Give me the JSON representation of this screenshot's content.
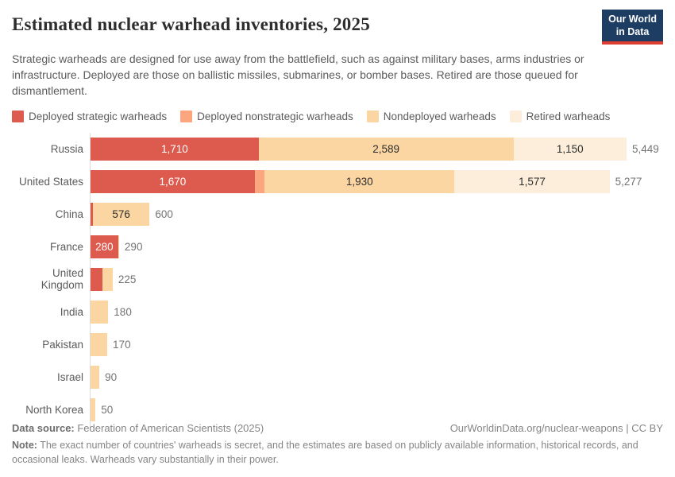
{
  "header": {
    "title": "Estimated nuclear warhead inventories, 2025",
    "logo": {
      "line1": "Our World",
      "line2": "in Data",
      "bg_color": "#1d3d63",
      "accent_color": "#dc3e32"
    }
  },
  "subtitle": "Strategic warheads are designed for use away from the battlefield, such as against military bases, arms industries or infrastructure. Deployed are those on ballistic missiles, submarines, or bomber bases. Retired are those queued for dismantlement.",
  "legend": [
    {
      "key": "strategic",
      "label": "Deployed strategic warheads",
      "color": "#dd5a4e"
    },
    {
      "key": "nonstrategic",
      "label": "Deployed nonstrategic warheads",
      "color": "#fca67f"
    },
    {
      "key": "nondeployed",
      "label": "Nondeployed warheads",
      "color": "#fcd6a2"
    },
    {
      "key": "retired",
      "label": "Retired warheads",
      "color": "#fdeedc"
    }
  ],
  "chart_data": {
    "type": "bar",
    "orientation": "horizontal",
    "stacked": true,
    "title": "Estimated nuclear warhead inventories, 2025",
    "xlabel": "",
    "ylabel": "",
    "xlim": [
      0,
      5449
    ],
    "grid": false,
    "legend_position": "top",
    "max_total": 5449,
    "series_names": [
      "Deployed strategic warheads",
      "Deployed nonstrategic warheads",
      "Nondeployed warheads",
      "Retired warheads"
    ],
    "colors": {
      "strategic": "#dd5a4e",
      "nonstrategic": "#fca67f",
      "nondeployed": "#fcd6a2",
      "retired": "#fdeedc"
    },
    "rows": [
      {
        "country": "Russia",
        "total": 5449,
        "total_label": "5,449",
        "segments": [
          {
            "series": "strategic",
            "value": 1710,
            "label": "1,710",
            "label_style": "light"
          },
          {
            "series": "nondeployed",
            "value": 2589,
            "label": "2,589",
            "label_style": "dark"
          },
          {
            "series": "retired",
            "value": 1150,
            "label": "1,150",
            "label_style": "dark"
          }
        ]
      },
      {
        "country": "United States",
        "total": 5277,
        "total_label": "5,277",
        "segments": [
          {
            "series": "strategic",
            "value": 1670,
            "label": "1,670",
            "label_style": "light"
          },
          {
            "series": "nonstrategic",
            "value": 100,
            "label": "",
            "label_style": "dark"
          },
          {
            "series": "nondeployed",
            "value": 1930,
            "label": "1,930",
            "label_style": "dark"
          },
          {
            "series": "retired",
            "value": 1577,
            "label": "1,577",
            "label_style": "dark"
          }
        ]
      },
      {
        "country": "China",
        "total": 600,
        "total_label": "600",
        "segments": [
          {
            "series": "strategic",
            "value": 24,
            "label": "",
            "label_style": "light"
          },
          {
            "series": "nondeployed",
            "value": 576,
            "label": "576",
            "label_style": "dark"
          }
        ]
      },
      {
        "country": "France",
        "total": 290,
        "total_label": "290",
        "segments": [
          {
            "series": "strategic",
            "value": 280,
            "label": "280",
            "label_style": "light"
          },
          {
            "series": "nondeployed",
            "value": 10,
            "label": "",
            "label_style": "dark"
          }
        ]
      },
      {
        "country": "United Kingdom",
        "total": 225,
        "total_label": "225",
        "segments": [
          {
            "series": "strategic",
            "value": 120,
            "label": "",
            "label_style": "light"
          },
          {
            "series": "nondeployed",
            "value": 105,
            "label": "",
            "label_style": "dark"
          }
        ]
      },
      {
        "country": "India",
        "total": 180,
        "total_label": "180",
        "segments": [
          {
            "series": "nondeployed",
            "value": 180,
            "label": "",
            "label_style": "dark"
          }
        ]
      },
      {
        "country": "Pakistan",
        "total": 170,
        "total_label": "170",
        "segments": [
          {
            "series": "nondeployed",
            "value": 170,
            "label": "",
            "label_style": "dark"
          }
        ]
      },
      {
        "country": "Israel",
        "total": 90,
        "total_label": "90",
        "segments": [
          {
            "series": "nondeployed",
            "value": 90,
            "label": "",
            "label_style": "dark"
          }
        ]
      },
      {
        "country": "North Korea",
        "total": 50,
        "total_label": "50",
        "segments": [
          {
            "series": "nondeployed",
            "value": 50,
            "label": "",
            "label_style": "dark"
          }
        ]
      }
    ]
  },
  "footer": {
    "datasource_label": "Data source:",
    "datasource_value": " Federation of American Scientists (2025)",
    "link": "OurWorldinData.org/nuclear-weapons | CC BY",
    "note_label": "Note:",
    "note_value": " The exact number of countries' warheads is secret, and the estimates are based on publicly available information, historical records, and occasional leaks. Warheads vary substantially in their power."
  }
}
